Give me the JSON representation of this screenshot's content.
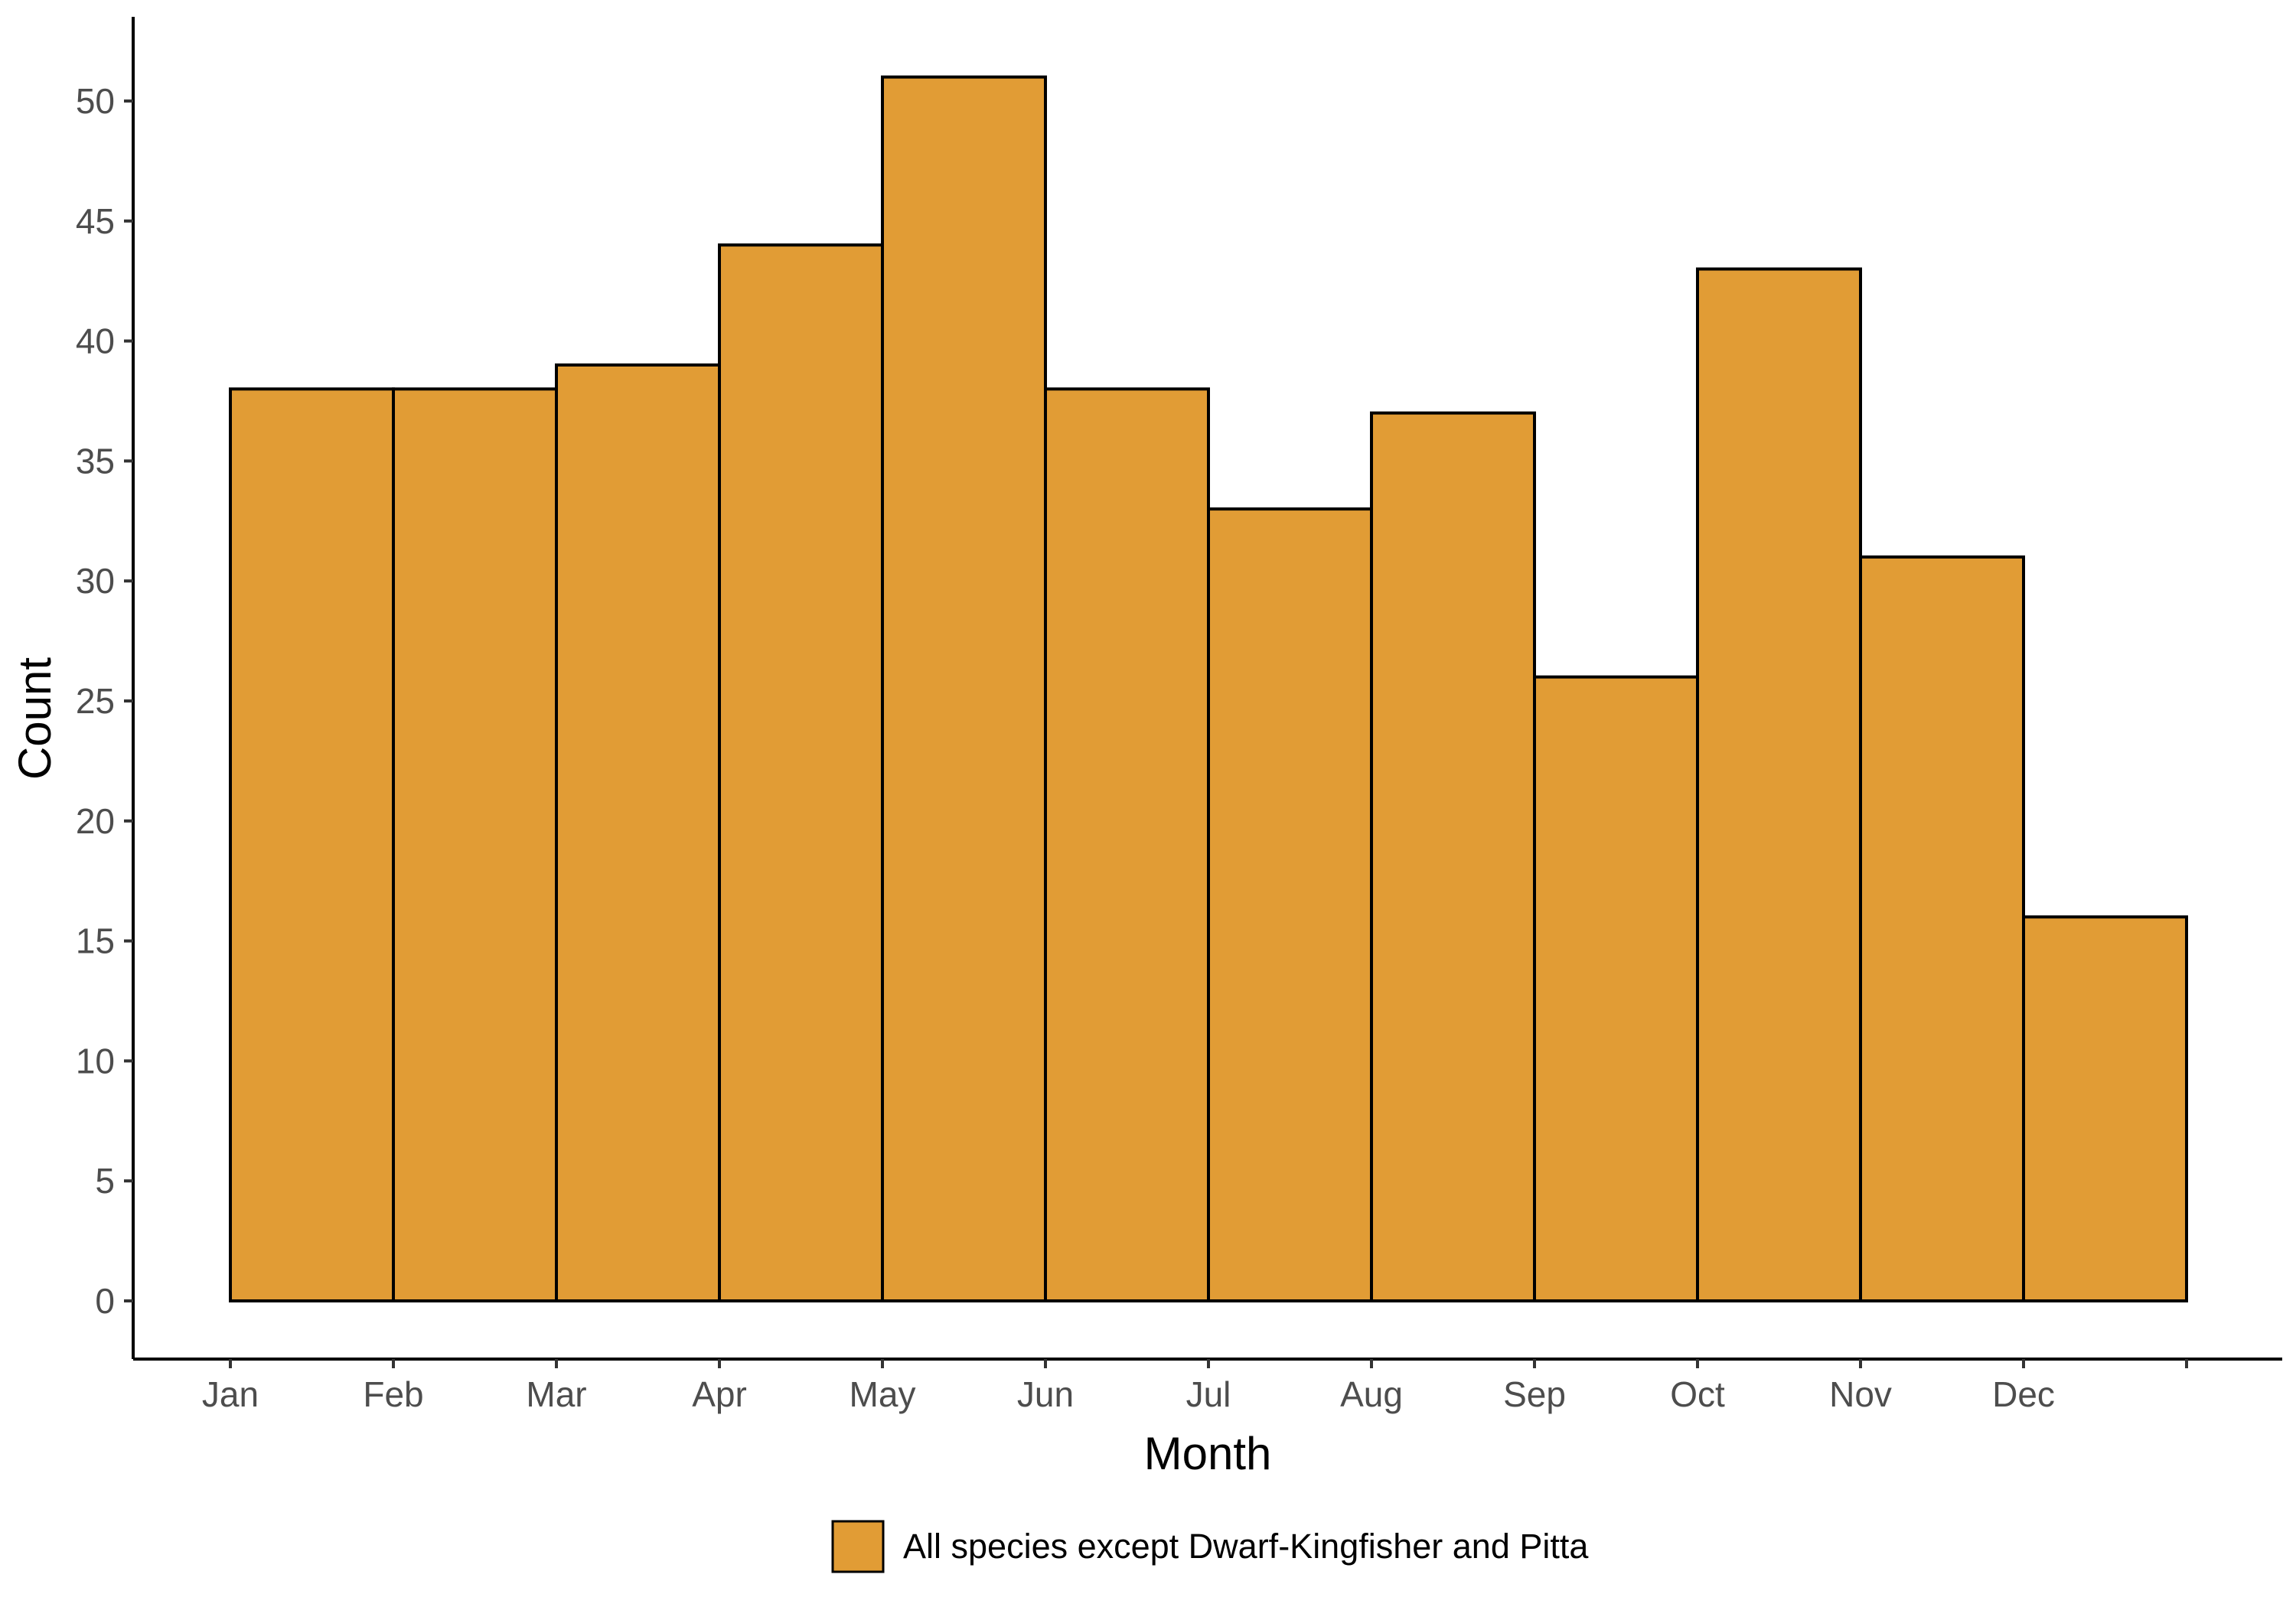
{
  "chart_data": {
    "type": "bar",
    "title": "",
    "xlabel": "Month",
    "ylabel": "Count",
    "categories": [
      "Jan",
      "Feb",
      "Mar",
      "Apr",
      "May",
      "Jun",
      "Jul",
      "Aug",
      "Sep",
      "Oct",
      "Nov",
      "Dec"
    ],
    "series": [
      {
        "name": "All species except Dwarf-Kingfisher and Pitta",
        "values": [
          38,
          38,
          39,
          44,
          51,
          38,
          33,
          37,
          26,
          43,
          31,
          16
        ],
        "color": "#E19C35"
      }
    ],
    "yticks": [
      0,
      5,
      10,
      15,
      20,
      25,
      30,
      35,
      40,
      45,
      50
    ],
    "ylim": [
      -2.5,
      53.5
    ],
    "grid": false,
    "legend_position": "bottom"
  }
}
